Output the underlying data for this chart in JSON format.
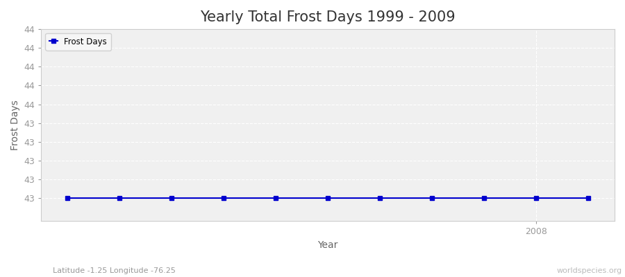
{
  "title": "Yearly Total Frost Days 1999 - 2009",
  "xlabel": "Year",
  "ylabel": "Frost Days",
  "subtitle": "Latitude -1.25 Longitude -76.25",
  "watermark": "worldspecies.org",
  "legend_label": "Frost Days",
  "line_color": "#0000cd",
  "background_color": "#f0f0f0",
  "plot_bg_color": "#f0f0f0",
  "grid_color": "#ffffff",
  "years": [
    1999,
    2000,
    2001,
    2002,
    2003,
    2004,
    2005,
    2006,
    2007,
    2008,
    2009
  ],
  "values": [
    43.0,
    43.0,
    43.0,
    43.0,
    43.0,
    43.0,
    43.0,
    43.0,
    43.0,
    43.0,
    43.0
  ],
  "ylim_min": 42.84,
  "ylim_max": 44.16,
  "xlim_min": 1998.5,
  "xlim_max": 2009.5,
  "ytick_values": [
    43.0,
    43.13,
    43.26,
    43.39,
    43.52,
    43.65,
    43.78,
    43.91,
    44.04,
    44.17
  ],
  "ytick_labels": [
    "43",
    "43",
    "43",
    "43",
    "43",
    "44",
    "44",
    "44",
    "44",
    "44"
  ],
  "xtick_values": [
    2008
  ],
  "xtick_labels": [
    "2008"
  ],
  "title_fontsize": 15,
  "axis_label_fontsize": 10,
  "tick_fontsize": 9,
  "subtitle_fontsize": 8,
  "watermark_fontsize": 8,
  "tick_color": "#999999",
  "title_color": "#333333",
  "label_color": "#666666"
}
